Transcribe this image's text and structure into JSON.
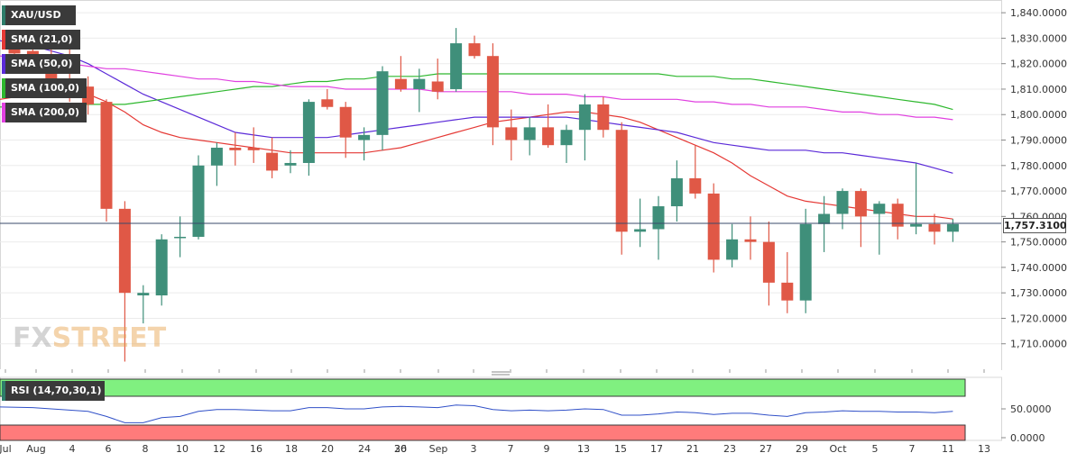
{
  "chart_data": {
    "type": "candlestick",
    "symbol": "XAU/USD",
    "indicators": [
      {
        "label": "SMA (21,0)",
        "color": "#e53935"
      },
      {
        "label": "SMA (50,0)",
        "color": "#5b2ad8"
      },
      {
        "label": "SMA (100,0)",
        "color": "#2eb82e"
      },
      {
        "label": "SMA (200,0)",
        "color": "#e040e0"
      }
    ],
    "last_price_label": "1,757.3100",
    "last_price": 1757.31,
    "ylim": [
      1700,
      1845
    ],
    "y_ticks": [
      "1,710.0000",
      "1,720.0000",
      "1,730.0000",
      "1,740.0000",
      "1,750.0000",
      "1,760.0000",
      "1,770.0000",
      "1,780.0000",
      "1,790.0000",
      "1,800.0000",
      "1,810.0000",
      "1,820.0000",
      "1,830.0000",
      "1,840.0000"
    ],
    "x_ticks": [
      "Jul",
      "Aug",
      "4",
      "6",
      "8",
      "10",
      "12",
      "16",
      "18",
      "20",
      "24",
      "26",
      "30",
      "Sep",
      "3",
      "7",
      "9",
      "13",
      "15",
      "17",
      "21",
      "23",
      "27",
      "29",
      "Oct",
      "5",
      "7",
      "11",
      "13"
    ],
    "candles": [
      [
        1831,
        1832,
        1820,
        1824
      ],
      [
        1825,
        1828,
        1817,
        1821
      ],
      [
        1821,
        1828,
        1810,
        1814
      ],
      [
        1813,
        1831,
        1805,
        1812
      ],
      [
        1811,
        1815,
        1800,
        1804
      ],
      [
        1805,
        1806,
        1758,
        1763
      ],
      [
        1763,
        1766,
        1703,
        1730
      ],
      [
        1729,
        1733,
        1718,
        1730
      ],
      [
        1729,
        1753,
        1725,
        1751
      ],
      [
        1752,
        1760,
        1744,
        1752
      ],
      [
        1752,
        1784,
        1751,
        1780
      ],
      [
        1780,
        1789,
        1772,
        1787
      ],
      [
        1787,
        1793,
        1780,
        1786
      ],
      [
        1787,
        1795,
        1781,
        1786
      ],
      [
        1785,
        1791,
        1775,
        1778
      ],
      [
        1780,
        1786,
        1777,
        1781
      ],
      [
        1781,
        1806,
        1776,
        1805
      ],
      [
        1806,
        1810,
        1802,
        1803
      ],
      [
        1803,
        1805,
        1783,
        1791
      ],
      [
        1790,
        1795,
        1782,
        1792
      ],
      [
        1792,
        1819,
        1786,
        1817
      ],
      [
        1814,
        1823,
        1809,
        1810
      ],
      [
        1810,
        1818,
        1801,
        1814
      ],
      [
        1813,
        1822,
        1806,
        1809
      ],
      [
        1810,
        1834,
        1809,
        1828
      ],
      [
        1828,
        1831,
        1822,
        1823
      ],
      [
        1823,
        1828,
        1788,
        1795
      ],
      [
        1795,
        1802,
        1782,
        1790
      ],
      [
        1790,
        1799,
        1784,
        1795
      ],
      [
        1795,
        1804,
        1787,
        1788
      ],
      [
        1788,
        1796,
        1781,
        1794
      ],
      [
        1794,
        1808,
        1782,
        1804
      ],
      [
        1804,
        1807,
        1791,
        1794
      ],
      [
        1794,
        1797,
        1745,
        1754
      ],
      [
        1754,
        1767,
        1748,
        1755
      ],
      [
        1755,
        1768,
        1743,
        1764
      ],
      [
        1764,
        1782,
        1758,
        1775
      ],
      [
        1775,
        1788,
        1767,
        1769
      ],
      [
        1769,
        1773,
        1738,
        1743
      ],
      [
        1743,
        1757,
        1740,
        1751
      ],
      [
        1751,
        1760,
        1743,
        1750
      ],
      [
        1750,
        1758,
        1725,
        1734
      ],
      [
        1734,
        1746,
        1722,
        1727
      ],
      [
        1727,
        1763,
        1722,
        1757
      ],
      [
        1757,
        1768,
        1746,
        1761
      ],
      [
        1761,
        1771,
        1755,
        1770
      ],
      [
        1770,
        1771,
        1748,
        1760
      ],
      [
        1761,
        1766,
        1745,
        1765
      ],
      [
        1765,
        1767,
        1751,
        1756
      ],
      [
        1756,
        1781,
        1753,
        1757
      ],
      [
        1757,
        1761,
        1749,
        1754
      ],
      [
        1754,
        1759,
        1750,
        1757
      ]
    ],
    "rsi": {
      "label": "RSI (14,70,30,1)",
      "upper": 70,
      "lower": 30,
      "y_ticks": [
        "50.0000",
        "0.0000"
      ],
      "values": [
        53,
        52,
        50,
        48,
        46,
        38,
        28,
        28,
        36,
        38,
        46,
        49,
        49,
        48,
        47,
        47,
        52,
        52,
        50,
        50,
        53,
        54,
        53,
        52,
        56,
        55,
        49,
        47,
        48,
        47,
        48,
        50,
        49,
        40,
        40,
        42,
        45,
        44,
        41,
        43,
        43,
        40,
        38,
        44,
        45,
        47,
        46,
        46,
        45,
        45,
        44,
        46
      ]
    }
  }
}
